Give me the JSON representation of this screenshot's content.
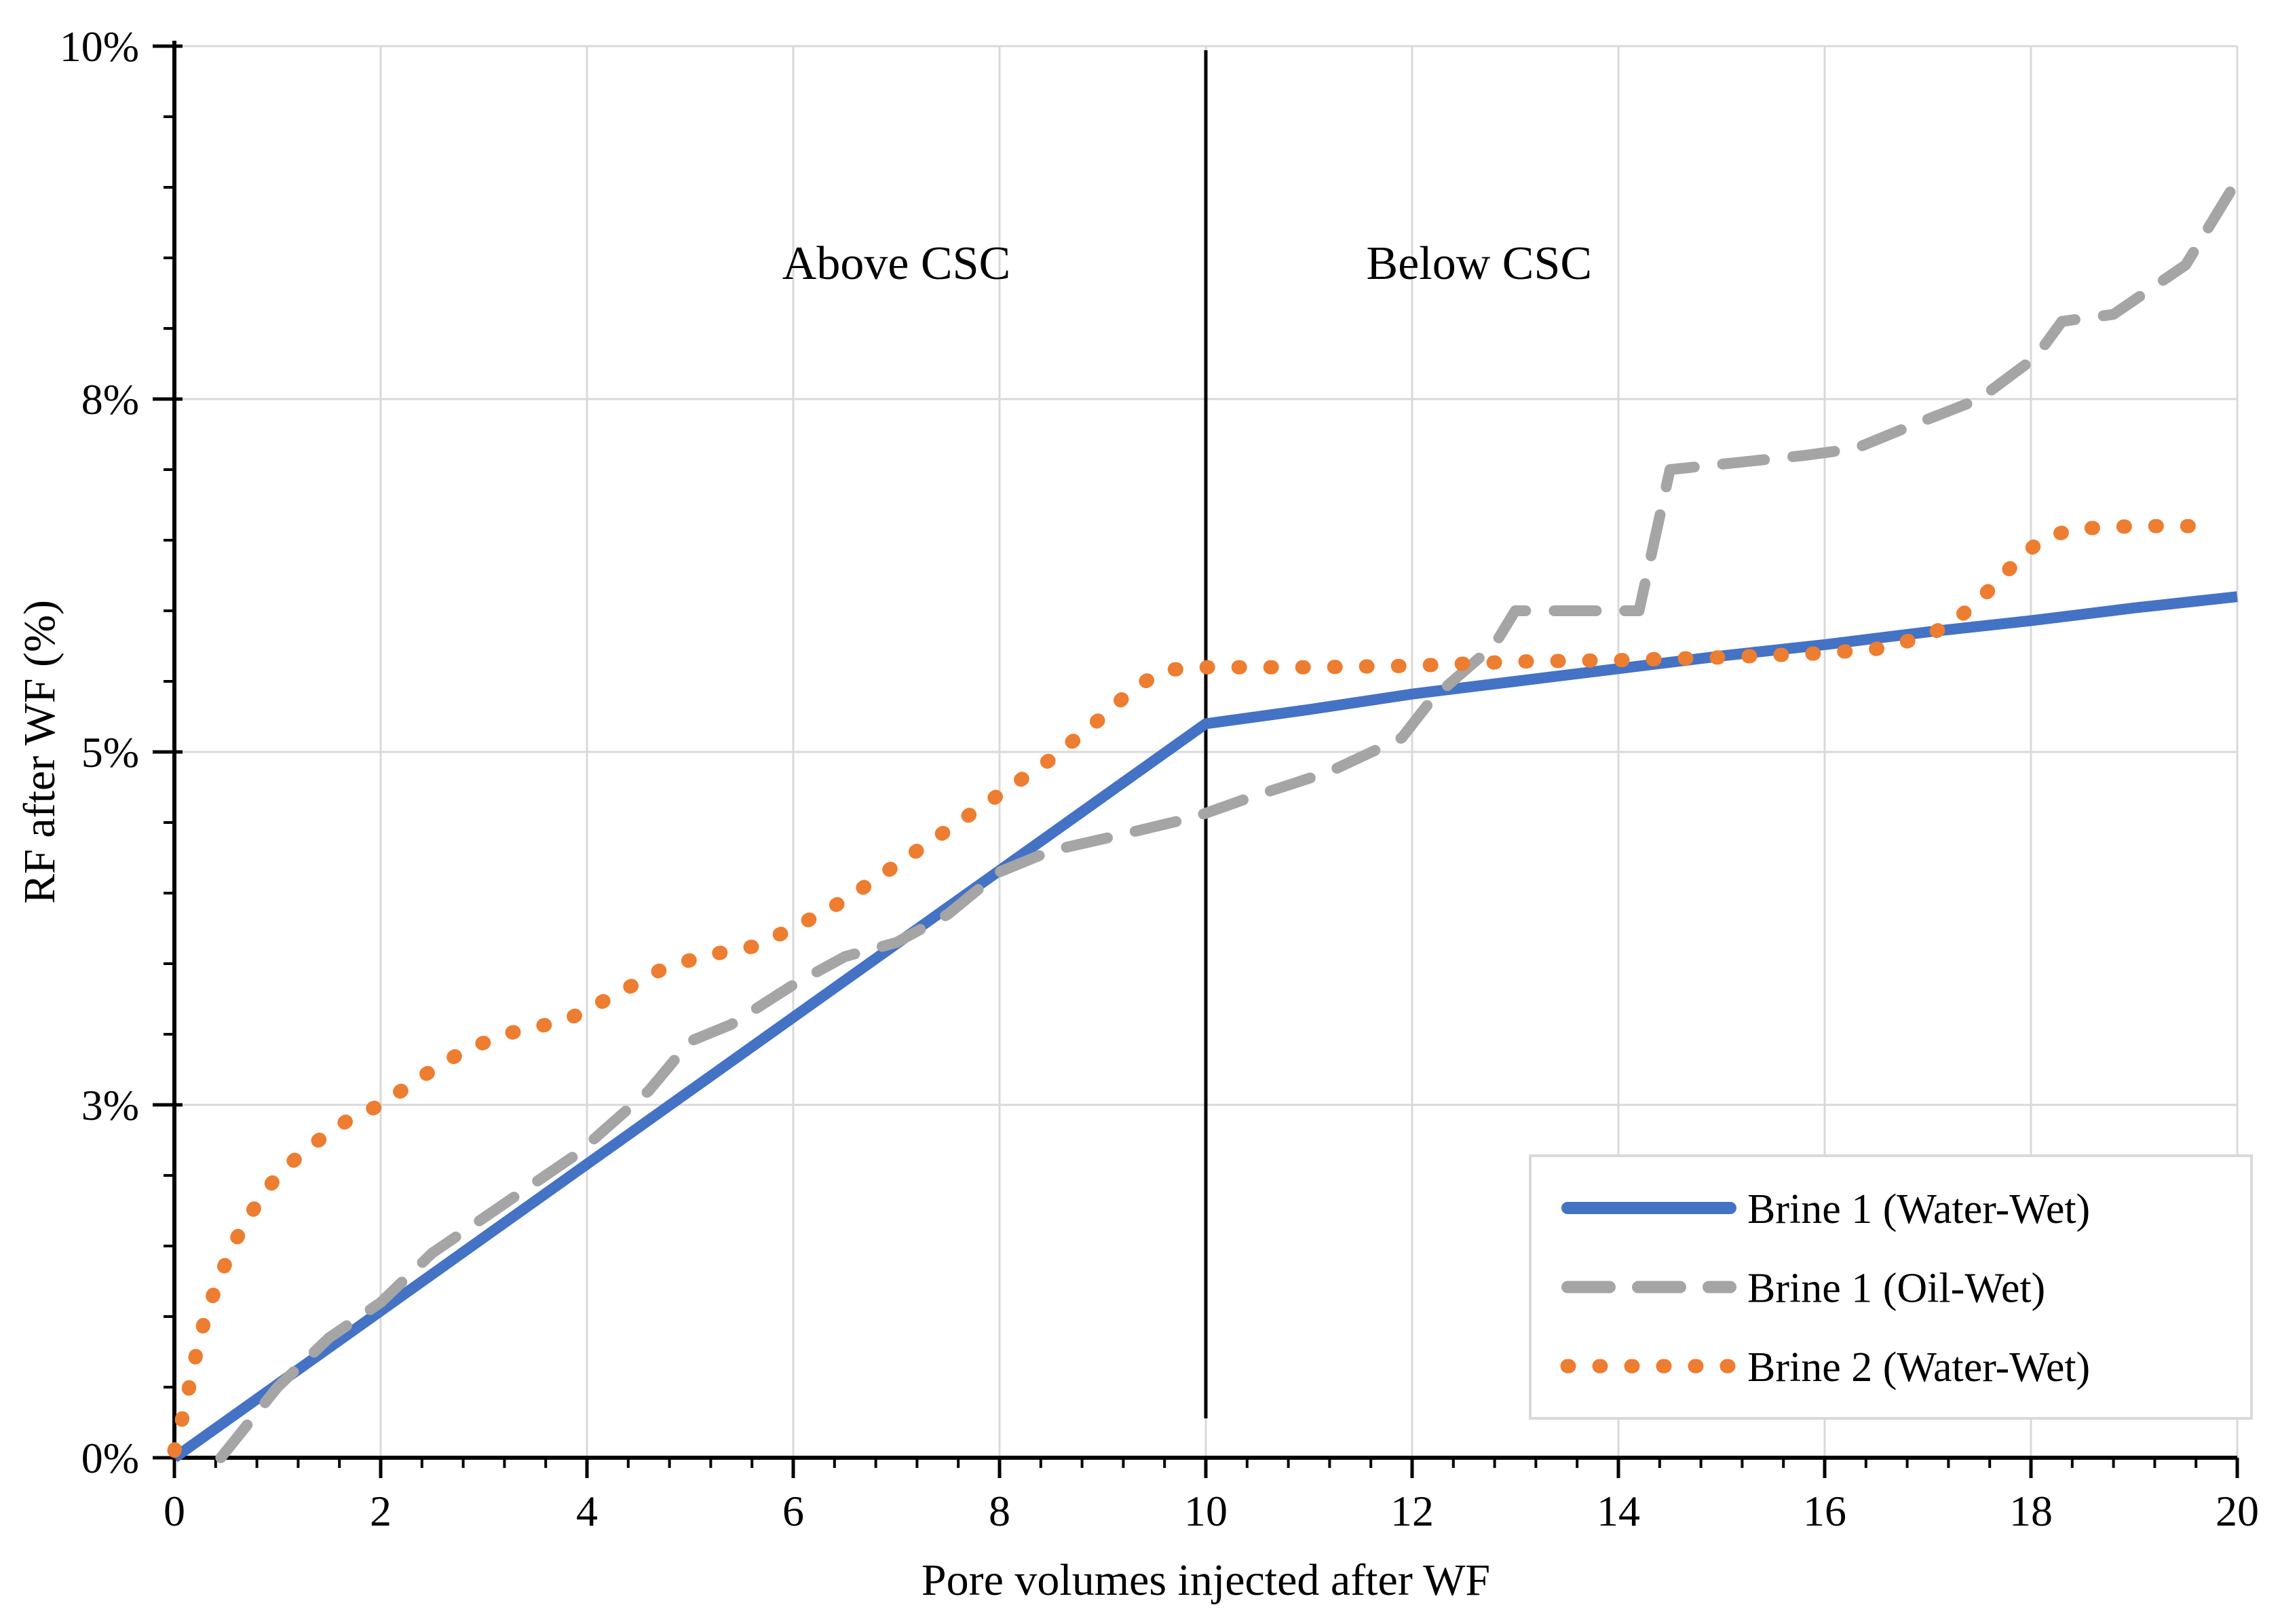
{
  "chart_data": {
    "type": "line",
    "title": "",
    "xlabel": "Pore volumes injected after WF",
    "ylabel": "RF after WF (%)",
    "xlim": [
      0,
      20
    ],
    "ylim": [
      0,
      10
    ],
    "grid": true,
    "legend_position": "bottom-right",
    "x_ticks": [
      {
        "value": 0,
        "label": "0"
      },
      {
        "value": 2,
        "label": "2"
      },
      {
        "value": 4,
        "label": "4"
      },
      {
        "value": 6,
        "label": "6"
      },
      {
        "value": 8,
        "label": "8"
      },
      {
        "value": 10,
        "label": "10"
      },
      {
        "value": 12,
        "label": "12"
      },
      {
        "value": 14,
        "label": "14"
      },
      {
        "value": 16,
        "label": "16"
      },
      {
        "value": 18,
        "label": "18"
      },
      {
        "value": 20,
        "label": "20"
      }
    ],
    "y_ticks": [
      {
        "value": 0,
        "label": "0%"
      },
      {
        "value": 2.5,
        "label": "3%"
      },
      {
        "value": 5,
        "label": "5%"
      },
      {
        "value": 7.5,
        "label": "8%"
      },
      {
        "value": 10,
        "label": "10%"
      }
    ],
    "x_minor_step": 0.4,
    "y_minor_step": 0.5,
    "divider_x": 10,
    "annotations": [
      {
        "text": "Above CSC",
        "x": 7.0,
        "y": 8.35
      },
      {
        "text": "Below CSC",
        "x": 12.65,
        "y": 8.35
      }
    ],
    "colors": {
      "blue": "#4472C4",
      "gray": "#A5A5A5",
      "orange": "#ED7D31",
      "gridline": "#D9D9D9",
      "axis": "#000000",
      "legend_border": "#D9D9D9"
    },
    "series": [
      {
        "name": "Brine 1 (Water-Wet)",
        "style": "solid",
        "color": "#4472C4",
        "points": [
          [
            0,
            0
          ],
          [
            1,
            0.52
          ],
          [
            2,
            1.04
          ],
          [
            3,
            1.56
          ],
          [
            4,
            2.08
          ],
          [
            5,
            2.6
          ],
          [
            6,
            3.12
          ],
          [
            7,
            3.64
          ],
          [
            8,
            4.16
          ],
          [
            9,
            4.68
          ],
          [
            10,
            5.2
          ],
          [
            11,
            5.3
          ],
          [
            12,
            5.41
          ],
          [
            13,
            5.5
          ],
          [
            14,
            5.59
          ],
          [
            15,
            5.68
          ],
          [
            16,
            5.76
          ],
          [
            17,
            5.85
          ],
          [
            18,
            5.93
          ],
          [
            19,
            6.02
          ],
          [
            20,
            6.1
          ]
        ]
      },
      {
        "name": "Brine 1 (Oil-Wet)",
        "style": "dashed",
        "color": "#A5A5A5",
        "points": [
          [
            0.45,
            0
          ],
          [
            1,
            0.5
          ],
          [
            1.5,
            0.85
          ],
          [
            2,
            1.1
          ],
          [
            2.5,
            1.45
          ],
          [
            3.2,
            1.8
          ],
          [
            3.9,
            2.15
          ],
          [
            4.6,
            2.6
          ],
          [
            5,
            2.95
          ],
          [
            5.4,
            3.07
          ],
          [
            6,
            3.35
          ],
          [
            6.5,
            3.55
          ],
          [
            7,
            3.65
          ],
          [
            7.5,
            3.85
          ],
          [
            8,
            4.15
          ],
          [
            8.5,
            4.3
          ],
          [
            9.1,
            4.4
          ],
          [
            9.9,
            4.54
          ],
          [
            10.4,
            4.67
          ],
          [
            11.2,
            4.86
          ],
          [
            11.9,
            5.1
          ],
          [
            12.2,
            5.38
          ],
          [
            12.8,
            5.76
          ],
          [
            13,
            6.0
          ],
          [
            14.2,
            6.0
          ],
          [
            14.5,
            7.0
          ],
          [
            15.8,
            7.1
          ],
          [
            16.3,
            7.15
          ],
          [
            16.8,
            7.3
          ],
          [
            17.5,
            7.5
          ],
          [
            18.05,
            7.8
          ],
          [
            18.3,
            8.05
          ],
          [
            18.8,
            8.1
          ],
          [
            19.2,
            8.3
          ],
          [
            19.5,
            8.45
          ],
          [
            20,
            9.05
          ]
        ]
      },
      {
        "name": "Brine 2 (Water-Wet)",
        "style": "dotted",
        "color": "#ED7D31",
        "points": [
          [
            0,
            0.05
          ],
          [
            0.1,
            0.35
          ],
          [
            0.2,
            0.7
          ],
          [
            0.3,
            1.0
          ],
          [
            0.45,
            1.3
          ],
          [
            0.6,
            1.55
          ],
          [
            0.8,
            1.8
          ],
          [
            1.0,
            2.0
          ],
          [
            1.3,
            2.2
          ],
          [
            1.7,
            2.4
          ],
          [
            2.0,
            2.5
          ],
          [
            2.4,
            2.7
          ],
          [
            2.8,
            2.88
          ],
          [
            3.2,
            3.0
          ],
          [
            3.8,
            3.1
          ],
          [
            4.2,
            3.25
          ],
          [
            4.7,
            3.45
          ],
          [
            5.1,
            3.55
          ],
          [
            5.6,
            3.62
          ],
          [
            6.0,
            3.75
          ],
          [
            6.5,
            3.95
          ],
          [
            7.0,
            4.2
          ],
          [
            7.5,
            4.45
          ],
          [
            8.0,
            4.7
          ],
          [
            8.5,
            4.95
          ],
          [
            9.0,
            5.25
          ],
          [
            9.3,
            5.45
          ],
          [
            9.6,
            5.58
          ],
          [
            10,
            5.6
          ],
          [
            11,
            5.6
          ],
          [
            12,
            5.61
          ],
          [
            13,
            5.64
          ],
          [
            14,
            5.65
          ],
          [
            15,
            5.67
          ],
          [
            16,
            5.7
          ],
          [
            16.5,
            5.73
          ],
          [
            17,
            5.82
          ],
          [
            17.3,
            5.95
          ],
          [
            17.6,
            6.15
          ],
          [
            17.9,
            6.38
          ],
          [
            18.1,
            6.5
          ],
          [
            18.4,
            6.58
          ],
          [
            19,
            6.6
          ],
          [
            19.6,
            6.6
          ]
        ]
      }
    ]
  }
}
